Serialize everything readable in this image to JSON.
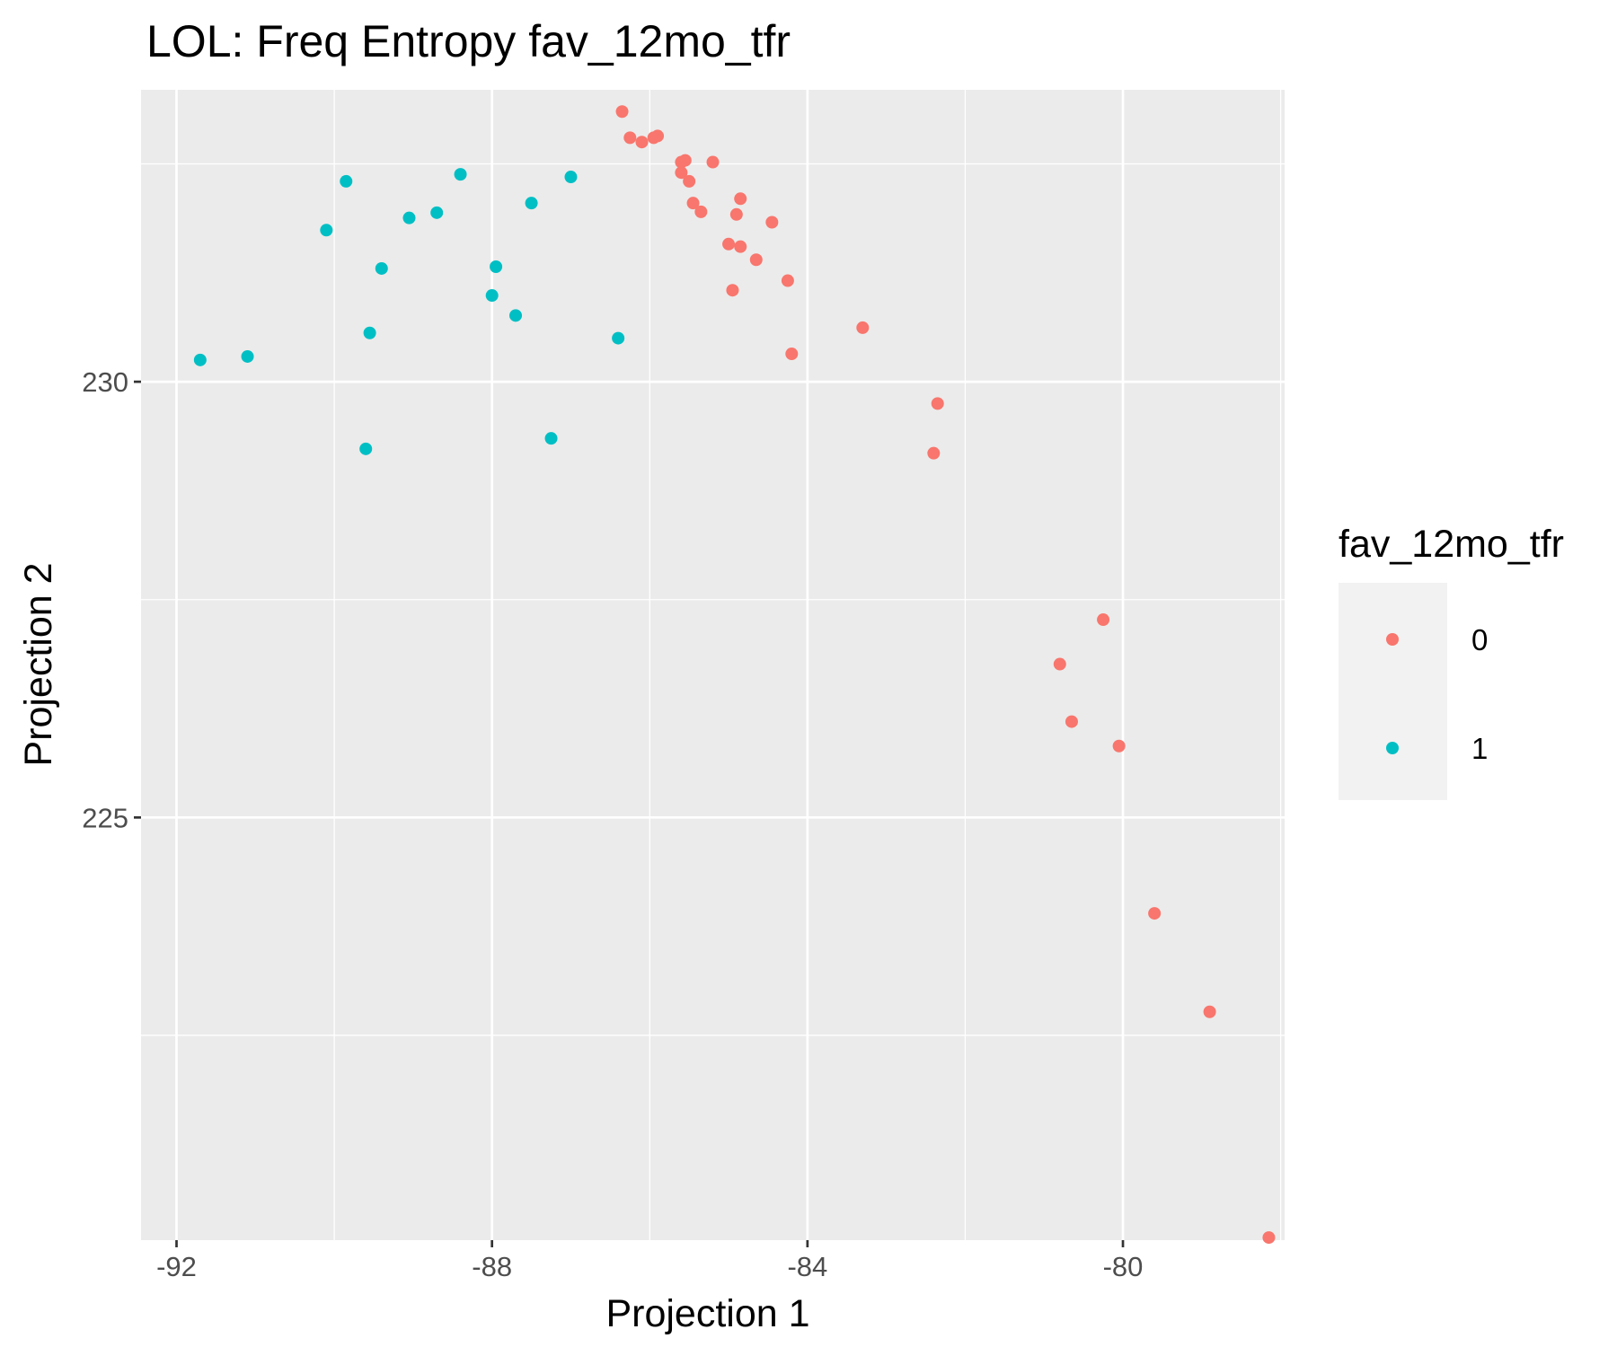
{
  "chart_data": {
    "type": "scatter",
    "title": "LOL: Freq Entropy fav_12mo_tfr",
    "xlabel": "Projection 1",
    "ylabel": "Projection 2",
    "xlim": [
      -92.45,
      -77.95
    ],
    "ylim": [
      220.15,
      233.35
    ],
    "x_ticks": [
      -92,
      -88,
      -84,
      -80
    ],
    "x_tick_labels": [
      "-92",
      "-88",
      "-84",
      "-80"
    ],
    "y_ticks": [
      225,
      230
    ],
    "y_tick_labels": [
      "225",
      "230"
    ],
    "grid": true,
    "legend": {
      "title": "fav_12mo_tfr",
      "position": "right"
    },
    "series": [
      {
        "name": "0",
        "color": "#f8766d",
        "points": [
          [
            -86.35,
            233.1
          ],
          [
            -86.25,
            232.8
          ],
          [
            -86.1,
            232.75
          ],
          [
            -85.95,
            232.8
          ],
          [
            -85.9,
            232.82
          ],
          [
            -85.6,
            232.52
          ],
          [
            -85.55,
            232.54
          ],
          [
            -85.6,
            232.4
          ],
          [
            -85.5,
            232.3
          ],
          [
            -85.2,
            232.52
          ],
          [
            -85.45,
            232.05
          ],
          [
            -85.35,
            231.95
          ],
          [
            -84.85,
            232.1
          ],
          [
            -84.9,
            231.92
          ],
          [
            -84.45,
            231.83
          ],
          [
            -85.0,
            231.58
          ],
          [
            -84.85,
            231.55
          ],
          [
            -84.65,
            231.4
          ],
          [
            -84.95,
            231.05
          ],
          [
            -84.25,
            231.16
          ],
          [
            -83.3,
            230.62
          ],
          [
            -84.2,
            230.32
          ],
          [
            -82.35,
            229.75
          ],
          [
            -82.4,
            229.18
          ],
          [
            -80.25,
            227.27
          ],
          [
            -80.8,
            226.76
          ],
          [
            -80.65,
            226.1
          ],
          [
            -80.05,
            225.82
          ],
          [
            -79.6,
            223.9
          ],
          [
            -78.9,
            222.77
          ],
          [
            -78.15,
            220.18
          ]
        ]
      },
      {
        "name": "1",
        "color": "#00bfc4",
        "points": [
          [
            -91.7,
            230.25
          ],
          [
            -91.1,
            230.29
          ],
          [
            -90.1,
            231.74
          ],
          [
            -89.85,
            232.3
          ],
          [
            -89.55,
            230.56
          ],
          [
            -89.6,
            229.23
          ],
          [
            -89.4,
            231.3
          ],
          [
            -89.05,
            231.88
          ],
          [
            -88.7,
            231.94
          ],
          [
            -88.4,
            232.38
          ],
          [
            -87.95,
            231.32
          ],
          [
            -88.0,
            230.99
          ],
          [
            -87.7,
            230.76
          ],
          [
            -87.5,
            232.05
          ],
          [
            -87.25,
            229.35
          ],
          [
            -87.0,
            232.35
          ],
          [
            -86.4,
            230.5
          ]
        ]
      }
    ]
  }
}
